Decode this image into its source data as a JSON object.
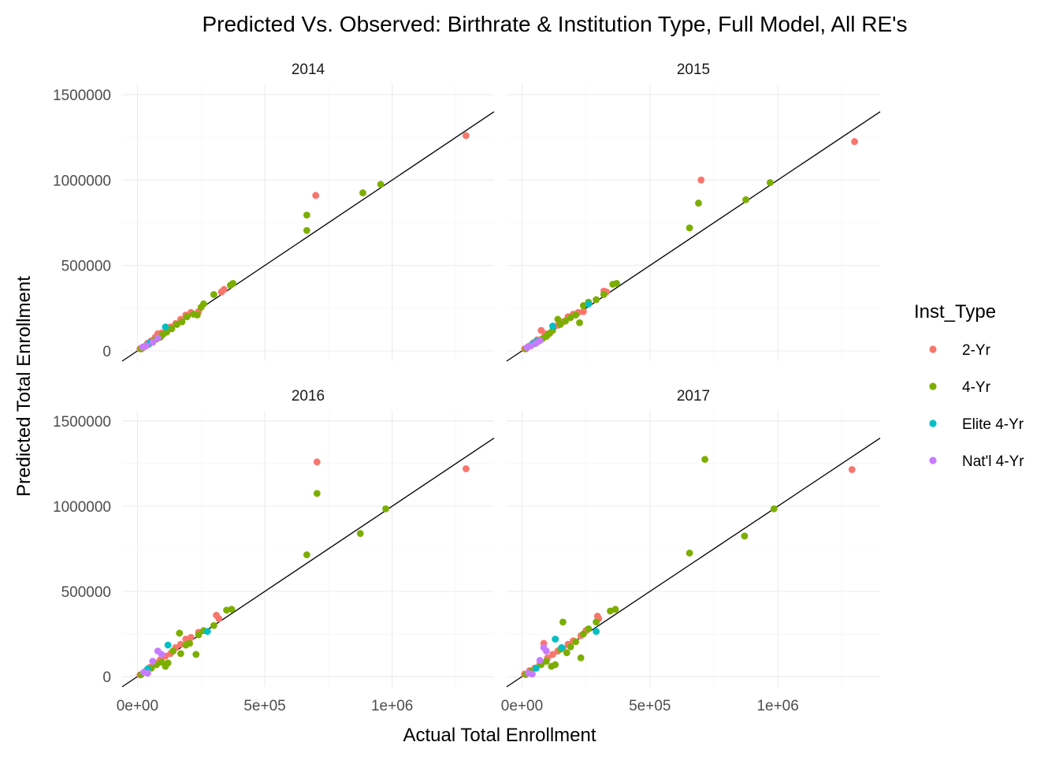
{
  "chart_data": {
    "type": "scatter",
    "title": "Predicted Vs. Observed: Birthrate & Institution Type, Full Model, All RE's",
    "xlabel": "Actual Total Enrollment",
    "ylabel": "Predicted Total Enrollment",
    "xlim": [
      -60000,
      1400000
    ],
    "ylim": [
      -60000,
      1560000
    ],
    "x_ticks": [
      0,
      500000,
      1000000
    ],
    "x_tick_labels": [
      "0e+00",
      "5e+05",
      "1e+06"
    ],
    "y_ticks": [
      0,
      500000,
      1000000,
      1500000
    ],
    "y_tick_labels": [
      "0",
      "500000",
      "1000000",
      "1500000"
    ],
    "grid": true,
    "reference_line": "y = x",
    "legend": {
      "title": "Inst_Type",
      "position": "right",
      "entries": [
        {
          "label": "2-Yr",
          "color": "#F8766D"
        },
        {
          "label": "4-Yr",
          "color": "#7CAE00"
        },
        {
          "label": "Elite 4-Yr",
          "color": "#00BFC4"
        },
        {
          "label": "Nat'l 4-Yr",
          "color": "#C77CFF"
        }
      ]
    },
    "panels": [
      {
        "label": "2014",
        "points": {
          "2-Yr": [
            [
              10000,
              12000
            ],
            [
              25000,
              22000
            ],
            [
              40000,
              45000
            ],
            [
              55000,
              60000
            ],
            [
              70000,
              80000
            ],
            [
              80000,
              100000
            ],
            [
              95000,
              105000
            ],
            [
              110000,
              115000
            ],
            [
              130000,
              140000
            ],
            [
              150000,
              160000
            ],
            [
              170000,
              185000
            ],
            [
              190000,
              210000
            ],
            [
              210000,
              225000
            ],
            [
              240000,
              230000
            ],
            [
              330000,
              345000
            ],
            [
              340000,
              360000
            ],
            [
              700000,
              910000
            ],
            [
              1290000,
              1260000
            ]
          ],
          "4-Yr": [
            [
              15000,
              12000
            ],
            [
              30000,
              28000
            ],
            [
              45000,
              40000
            ],
            [
              60000,
              55000
            ],
            [
              75000,
              70000
            ],
            [
              90000,
              80000
            ],
            [
              100000,
              95000
            ],
            [
              115000,
              110000
            ],
            [
              135000,
              130000
            ],
            [
              155000,
              155000
            ],
            [
              175000,
              170000
            ],
            [
              195000,
              200000
            ],
            [
              220000,
              215000
            ],
            [
              235000,
              210000
            ],
            [
              250000,
              255000
            ],
            [
              260000,
              275000
            ],
            [
              300000,
              330000
            ],
            [
              365000,
              385000
            ],
            [
              375000,
              395000
            ],
            [
              665000,
              795000
            ],
            [
              665000,
              705000
            ],
            [
              885000,
              925000
            ],
            [
              955000,
              975000
            ]
          ],
          "Elite 4-Yr": [
            [
              40000,
              35000
            ],
            [
              50000,
              50000
            ],
            [
              110000,
              140000
            ]
          ],
          "Nat'l 4-Yr": [
            [
              20000,
              22000
            ],
            [
              35000,
              30000
            ],
            [
              60000,
              50000
            ],
            [
              80000,
              75000
            ]
          ]
        }
      },
      {
        "label": "2015",
        "points": {
          "2-Yr": [
            [
              10000,
              12000
            ],
            [
              25000,
              25000
            ],
            [
              45000,
              48000
            ],
            [
              60000,
              65000
            ],
            [
              75000,
              120000
            ],
            [
              90000,
              100000
            ],
            [
              110000,
              105000
            ],
            [
              140000,
              150000
            ],
            [
              160000,
              170000
            ],
            [
              180000,
              200000
            ],
            [
              200000,
              215000
            ],
            [
              220000,
              225000
            ],
            [
              240000,
              230000
            ],
            [
              320000,
              350000
            ],
            [
              330000,
              345000
            ],
            [
              700000,
              1000000
            ],
            [
              1300000,
              1225000
            ]
          ],
          "4-Yr": [
            [
              15000,
              12000
            ],
            [
              30000,
              28000
            ],
            [
              50000,
              42000
            ],
            [
              65000,
              58000
            ],
            [
              80000,
              72000
            ],
            [
              95000,
              85000
            ],
            [
              105000,
              100000
            ],
            [
              120000,
              120000
            ],
            [
              140000,
              185000
            ],
            [
              150000,
              155000
            ],
            [
              170000,
              175000
            ],
            [
              190000,
              195000
            ],
            [
              210000,
              210000
            ],
            [
              225000,
              165000
            ],
            [
              240000,
              265000
            ],
            [
              260000,
              285000
            ],
            [
              290000,
              300000
            ],
            [
              320000,
              330000
            ],
            [
              355000,
              390000
            ],
            [
              370000,
              395000
            ],
            [
              655000,
              720000
            ],
            [
              690000,
              865000
            ],
            [
              875000,
              885000
            ],
            [
              970000,
              985000
            ]
          ],
          "Elite 4-Yr": [
            [
              40000,
              40000
            ],
            [
              55000,
              55000
            ],
            [
              120000,
              145000
            ],
            [
              260000,
              275000
            ]
          ],
          "Nat'l 4-Yr": [
            [
              20000,
              20000
            ],
            [
              35000,
              30000
            ],
            [
              55000,
              45000
            ],
            [
              70000,
              60000
            ]
          ]
        }
      },
      {
        "label": "2016",
        "points": {
          "2-Yr": [
            [
              10000,
              10000
            ],
            [
              30000,
              30000
            ],
            [
              50000,
              55000
            ],
            [
              70000,
              80000
            ],
            [
              90000,
              100000
            ],
            [
              110000,
              120000
            ],
            [
              130000,
              135000
            ],
            [
              150000,
              170000
            ],
            [
              170000,
              190000
            ],
            [
              190000,
              220000
            ],
            [
              210000,
              230000
            ],
            [
              240000,
              260000
            ],
            [
              310000,
              360000
            ],
            [
              320000,
              340000
            ],
            [
              705000,
              1260000
            ],
            [
              1290000,
              1220000
            ]
          ],
          "4-Yr": [
            [
              15000,
              12000
            ],
            [
              35000,
              30000
            ],
            [
              55000,
              50000
            ],
            [
              75000,
              70000
            ],
            [
              95000,
              85000
            ],
            [
              110000,
              60000
            ],
            [
              120000,
              80000
            ],
            [
              140000,
              150000
            ],
            [
              165000,
              255000
            ],
            [
              170000,
              135000
            ],
            [
              190000,
              185000
            ],
            [
              205000,
              195000
            ],
            [
              230000,
              130000
            ],
            [
              240000,
              245000
            ],
            [
              260000,
              270000
            ],
            [
              300000,
              300000
            ],
            [
              350000,
              390000
            ],
            [
              370000,
              395000
            ],
            [
              665000,
              715000
            ],
            [
              705000,
              1075000
            ],
            [
              875000,
              840000
            ],
            [
              975000,
              985000
            ]
          ],
          "Elite 4-Yr": [
            [
              40000,
              45000
            ],
            [
              120000,
              185000
            ],
            [
              275000,
              265000
            ]
          ],
          "Nat'l 4-Yr": [
            [
              25000,
              25000
            ],
            [
              40000,
              20000
            ],
            [
              60000,
              90000
            ],
            [
              80000,
              150000
            ],
            [
              95000,
              130000
            ]
          ]
        }
      },
      {
        "label": "2017",
        "points": {
          "2-Yr": [
            [
              10000,
              15000
            ],
            [
              30000,
              35000
            ],
            [
              50000,
              50000
            ],
            [
              70000,
              75000
            ],
            [
              85000,
              195000
            ],
            [
              100000,
              110000
            ],
            [
              120000,
              130000
            ],
            [
              140000,
              150000
            ],
            [
              160000,
              165000
            ],
            [
              180000,
              190000
            ],
            [
              200000,
              210000
            ],
            [
              230000,
              240000
            ],
            [
              250000,
              270000
            ],
            [
              295000,
              355000
            ],
            [
              300000,
              340000
            ],
            [
              1290000,
              1215000
            ]
          ],
          "4-Yr": [
            [
              15000,
              12000
            ],
            [
              35000,
              30000
            ],
            [
              55000,
              50000
            ],
            [
              75000,
              70000
            ],
            [
              95000,
              90000
            ],
            [
              115000,
              60000
            ],
            [
              130000,
              70000
            ],
            [
              150000,
              160000
            ],
            [
              160000,
              320000
            ],
            [
              175000,
              140000
            ],
            [
              190000,
              175000
            ],
            [
              210000,
              205000
            ],
            [
              230000,
              110000
            ],
            [
              240000,
              250000
            ],
            [
              260000,
              280000
            ],
            [
              290000,
              320000
            ],
            [
              345000,
              385000
            ],
            [
              365000,
              395000
            ],
            [
              655000,
              725000
            ],
            [
              715000,
              1275000
            ],
            [
              870000,
              825000
            ],
            [
              985000,
              985000
            ]
          ],
          "Elite 4-Yr": [
            [
              55000,
              50000
            ],
            [
              130000,
              220000
            ],
            [
              155000,
              170000
            ],
            [
              290000,
              265000
            ]
          ],
          "Nat'l 4-Yr": [
            [
              25000,
              20000
            ],
            [
              40000,
              15000
            ],
            [
              70000,
              95000
            ],
            [
              85000,
              170000
            ],
            [
              95000,
              150000
            ]
          ]
        }
      }
    ]
  }
}
